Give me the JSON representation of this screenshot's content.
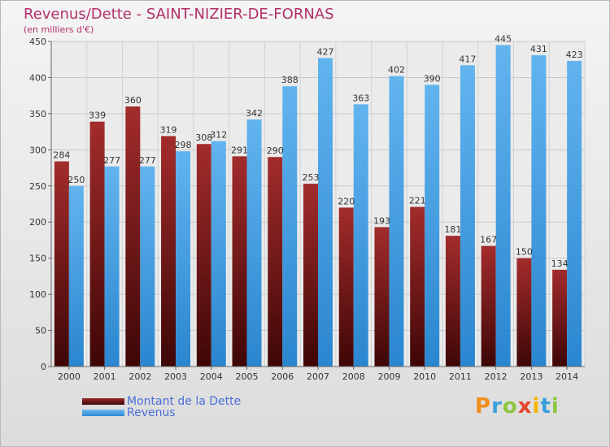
{
  "chart_data": {
    "type": "bar",
    "title": "Revenus/Dette - SAINT-NIZIER-DE-FORNAS",
    "subtitle": "(en milliers d'€)",
    "categories": [
      "2000",
      "2001",
      "2002",
      "2003",
      "2004",
      "2005",
      "2006",
      "2007",
      "2008",
      "2009",
      "2010",
      "2011",
      "2012",
      "2013",
      "2014"
    ],
    "series": [
      {
        "name": "Montant de la Dette",
        "values": [
          284,
          339,
          360,
          319,
          308,
          291,
          290,
          253,
          220,
          193,
          221,
          181,
          167,
          150,
          134
        ],
        "color": "#8b1e1e"
      },
      {
        "name": "Revenus",
        "values": [
          250,
          277,
          277,
          298,
          312,
          342,
          388,
          427,
          363,
          402,
          390,
          417,
          445,
          431,
          423
        ],
        "color": "#4aa3e6"
      }
    ],
    "ylim": [
      0,
      450
    ],
    "yticks": [
      0,
      50,
      100,
      150,
      200,
      250,
      300,
      350,
      400,
      450
    ],
    "grid": true,
    "legend": "bottom-left"
  },
  "logo": {
    "text": "Proxiti",
    "colors": [
      "#f28c1b",
      "#3aa0dc",
      "#8cc63f",
      "#e8452c",
      "#f7b500",
      "#3aa0dc",
      "#8cc63f"
    ]
  }
}
